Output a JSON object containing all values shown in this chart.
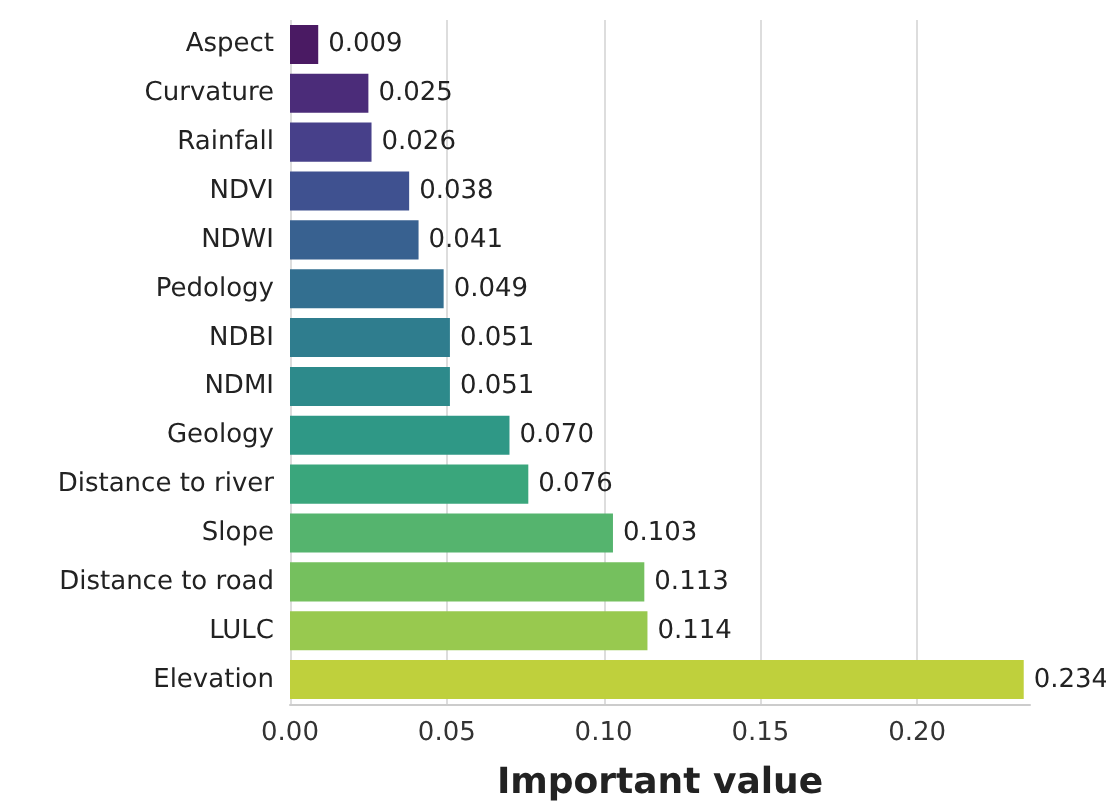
{
  "chart_data": {
    "type": "bar",
    "orientation": "horizontal",
    "xlabel": "Important value",
    "categories": [
      "Aspect",
      "Curvature",
      "Rainfall",
      "NDVI",
      "NDWI",
      "Pedology",
      "NDBI",
      "NDMI",
      "Geology",
      "Distance to river",
      "Slope",
      "Distance to road",
      "LULC",
      "Elevation"
    ],
    "values": [
      0.009,
      0.025,
      0.026,
      0.038,
      0.041,
      0.049,
      0.051,
      0.051,
      0.07,
      0.076,
      0.103,
      0.113,
      0.114,
      0.234
    ],
    "value_labels": [
      "0.009",
      "0.025",
      "0.026",
      "0.038",
      "0.041",
      "0.049",
      "0.051",
      "0.051",
      "0.070",
      "0.076",
      "0.103",
      "0.113",
      "0.114",
      "0.234"
    ],
    "colors": [
      "#4a1a63",
      "#4b2c79",
      "#47408a",
      "#3f5190",
      "#386190",
      "#336f90",
      "#2f7d8e",
      "#2d8a8b",
      "#2f9886",
      "#3aa67c",
      "#55b46e",
      "#75c05e",
      "#98c94f",
      "#bfd03c"
    ],
    "xlim": [
      0,
      0.236
    ],
    "xticks": [
      {
        "value": 0,
        "label": "0.00"
      },
      {
        "value": 0.05,
        "label": "0.05"
      },
      {
        "value": 0.1,
        "label": "0.10"
      },
      {
        "value": 0.15,
        "label": "0.15"
      },
      {
        "value": 0.2,
        "label": "0.20"
      }
    ],
    "grid": "x"
  }
}
